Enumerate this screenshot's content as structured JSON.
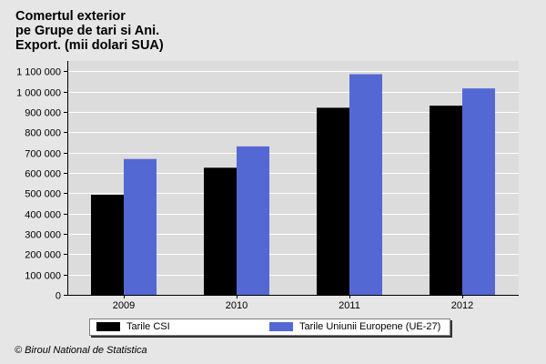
{
  "chart_data": {
    "type": "bar",
    "title_lines": [
      "Comertul exterior",
      "pe Grupe de tari si Ani.",
      "Export. (mii dolari SUA)"
    ],
    "categories": [
      "2009",
      "2010",
      "2011",
      "2012"
    ],
    "series": [
      {
        "name": "Tarile CSI",
        "color": "#000000",
        "values": [
          492000,
          625000,
          920000,
          930000
        ]
      },
      {
        "name": "Tarile Uniunii Europene (UE-27)",
        "color": "#5468d4",
        "values": [
          668000,
          730000,
          1085000,
          1015000
        ]
      }
    ],
    "ylim": [
      0,
      1150000
    ],
    "yticks": [
      0,
      100000,
      200000,
      300000,
      400000,
      500000,
      600000,
      700000,
      800000,
      900000,
      1000000,
      1100000
    ],
    "ytick_labels": [
      "0",
      "100 000",
      "200 000",
      "300 000",
      "400 000",
      "500 000",
      "600 000",
      "700 000",
      "800 000",
      "900 000",
      "1 000 000",
      "1 100 000"
    ],
    "grid": true,
    "legend_position": "bottom"
  },
  "footer": "© Biroul National de Statistica",
  "colors": {
    "plot_background": "#dcdcdc",
    "gridline": "#ffffff",
    "page_background": "#e6e6e6"
  }
}
